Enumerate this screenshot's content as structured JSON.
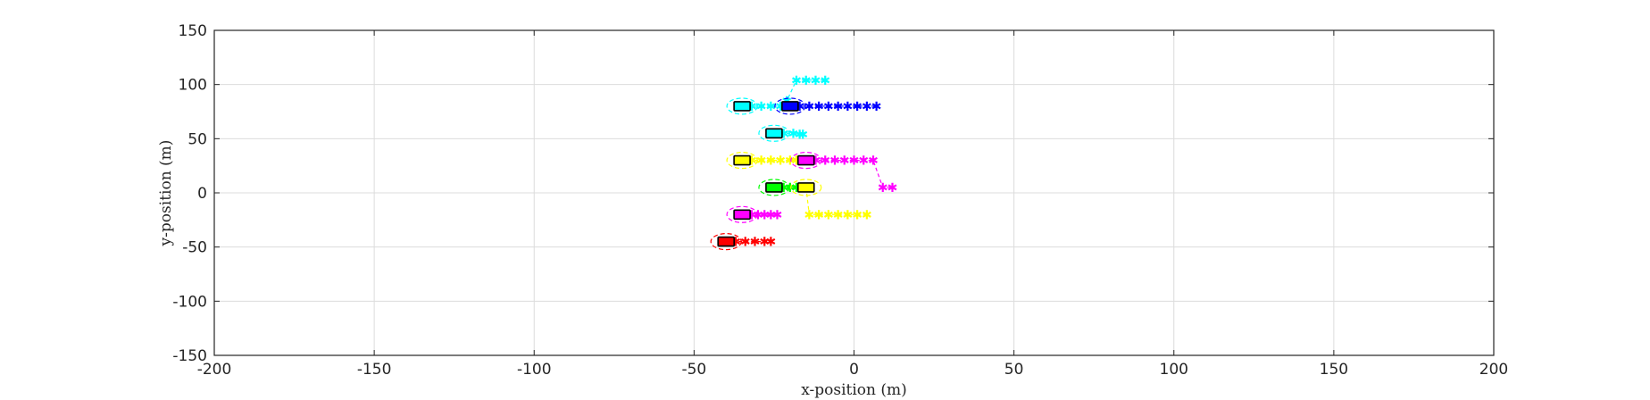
{
  "chart_data": {
    "type": "scatter",
    "xlabel": "x-position (m)",
    "ylabel": "y-position (m)",
    "xlim": [
      -200,
      200
    ],
    "ylim": [
      -150,
      150
    ],
    "xticks": [
      -200,
      -150,
      -100,
      -50,
      0,
      50,
      100,
      150,
      200
    ],
    "yticks": [
      -150,
      -100,
      -50,
      0,
      50,
      100,
      150
    ],
    "xtick_labels": [
      "-200",
      "-150",
      "-100",
      "-50",
      "0",
      "50",
      "100",
      "150",
      "200"
    ],
    "ytick_labels": [
      "-150",
      "-100",
      "-50",
      "0",
      "50",
      "100",
      "150"
    ],
    "grid": true,
    "vehicles": [
      {
        "color": "#00ffff",
        "x": -35,
        "y": 80,
        "path": [
          [
            -35,
            80
          ],
          [
            -32,
            80
          ],
          [
            -29,
            80
          ],
          [
            -26,
            80
          ],
          [
            -23,
            80
          ],
          [
            -21,
            85
          ],
          [
            -18,
            104
          ],
          [
            -15,
            104
          ],
          [
            -12,
            104
          ],
          [
            -9,
            104
          ]
        ]
      },
      {
        "color": "#0000ff",
        "x": -20,
        "y": 80,
        "path": [
          [
            -20,
            80
          ],
          [
            -17,
            80
          ],
          [
            -14,
            80
          ],
          [
            -11,
            80
          ],
          [
            -8,
            80
          ],
          [
            -5,
            80
          ],
          [
            -2,
            80
          ],
          [
            1,
            80
          ],
          [
            4,
            80
          ],
          [
            7,
            80
          ]
        ]
      },
      {
        "color": "#00ffff",
        "x": -25,
        "y": 55,
        "path": [
          [
            -25,
            55
          ],
          [
            -22,
            55
          ],
          [
            -19,
            55
          ],
          [
            -17,
            54
          ],
          [
            -16,
            54
          ]
        ]
      },
      {
        "color": "#ffff00",
        "x": -35,
        "y": 30,
        "path": [
          [
            -35,
            30
          ],
          [
            -32,
            30
          ],
          [
            -29,
            30
          ],
          [
            -26,
            30
          ],
          [
            -23,
            30
          ],
          [
            -20,
            30
          ],
          [
            -18,
            30
          ]
        ]
      },
      {
        "color": "#ff00ff",
        "x": -15,
        "y": 30,
        "path": [
          [
            -15,
            30
          ],
          [
            -12,
            30
          ],
          [
            -9,
            30
          ],
          [
            -6,
            30
          ],
          [
            -3,
            30
          ],
          [
            0,
            30
          ],
          [
            3,
            30
          ],
          [
            6,
            30
          ],
          [
            9,
            5
          ],
          [
            12,
            5
          ]
        ]
      },
      {
        "color": "#00ff00",
        "x": -25,
        "y": 5,
        "path": [
          [
            -25,
            5
          ],
          [
            -22,
            5
          ],
          [
            -20,
            5
          ],
          [
            -18,
            5
          ]
        ]
      },
      {
        "color": "#ffff00",
        "x": -15,
        "y": 5,
        "path": [
          [
            -15,
            5
          ],
          [
            -14,
            -20
          ],
          [
            -11,
            -20
          ],
          [
            -8,
            -20
          ],
          [
            -5,
            -20
          ],
          [
            -2,
            -20
          ],
          [
            1,
            -20
          ],
          [
            4,
            -20
          ]
        ]
      },
      {
        "color": "#ff00ff",
        "x": -35,
        "y": -20,
        "path": [
          [
            -35,
            -20
          ],
          [
            -32,
            -20
          ],
          [
            -30,
            -20
          ],
          [
            -28,
            -20
          ],
          [
            -26,
            -20
          ],
          [
            -24,
            -20
          ]
        ]
      },
      {
        "color": "#ff0000",
        "x": -40,
        "y": -45,
        "path": [
          [
            -40,
            -45
          ],
          [
            -37,
            -45
          ],
          [
            -34,
            -45
          ],
          [
            -31,
            -45
          ],
          [
            -28,
            -45
          ],
          [
            -26,
            -45
          ]
        ]
      }
    ]
  }
}
